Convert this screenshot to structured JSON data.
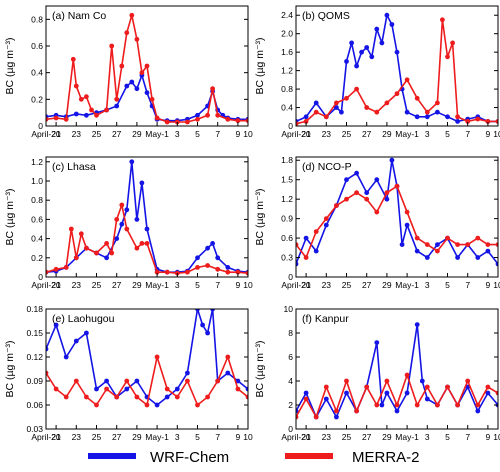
{
  "colors": {
    "wrf": "#1414e6",
    "merra": "#ee1c1c"
  },
  "legend": {
    "wrf": "WRF-Chem",
    "merra": "MERRA-2"
  },
  "chart_data": [
    {
      "type": "line",
      "title": "(a) Nam Co",
      "ylabel": "BC (µg m⁻³)",
      "ylim": [
        0,
        0.9
      ],
      "yticks": [
        "0",
        "0.2",
        "0.4",
        "0.6",
        "0.8"
      ],
      "ytick_values": [
        0,
        0.2,
        0.4,
        0.6,
        0.8
      ],
      "xlim": [
        0,
        20
      ],
      "xticks": [
        "April-20",
        "21",
        "23",
        "25",
        "27",
        "29",
        "May-1",
        "3",
        "5",
        "7",
        "9",
        "10"
      ],
      "xtick_values": [
        0,
        1,
        3,
        5,
        7,
        9,
        11,
        13,
        15,
        17,
        19,
        20
      ],
      "series": [
        {
          "name": "WRF-Chem",
          "x": [
            0,
            1,
            2,
            3,
            4,
            5,
            6,
            7,
            8,
            8.5,
            9,
            9.5,
            10,
            10.5,
            11,
            12,
            13,
            14,
            15,
            16,
            16.5,
            17,
            17.5,
            18,
            19,
            20
          ],
          "values": [
            0.07,
            0.08,
            0.07,
            0.09,
            0.08,
            0.1,
            0.12,
            0.15,
            0.3,
            0.33,
            0.28,
            0.38,
            0.25,
            0.15,
            0.05,
            0.04,
            0.04,
            0.05,
            0.08,
            0.15,
            0.26,
            0.12,
            0.08,
            0.06,
            0.05,
            0.05
          ]
        },
        {
          "name": "MERRA-2",
          "x": [
            0,
            1,
            2,
            2.7,
            3,
            3.5,
            4,
            4.5,
            5,
            6,
            6.5,
            7,
            7.5,
            8,
            8.5,
            9,
            9.5,
            10,
            10.5,
            11,
            12,
            13,
            14,
            15,
            16,
            16.5,
            17,
            18,
            19,
            20
          ],
          "values": [
            0.05,
            0.06,
            0.05,
            0.5,
            0.3,
            0.2,
            0.22,
            0.12,
            0.08,
            0.12,
            0.6,
            0.2,
            0.45,
            0.7,
            0.83,
            0.65,
            0.4,
            0.45,
            0.2,
            0.06,
            0.03,
            0.03,
            0.03,
            0.05,
            0.08,
            0.28,
            0.08,
            0.05,
            0.04,
            0.04
          ]
        }
      ]
    },
    {
      "type": "line",
      "title": "(b) QOMS",
      "ylabel": "BC (µg m⁻³)",
      "ylim": [
        0,
        2.6
      ],
      "yticks": [
        "0",
        "0.4",
        "0.8",
        "1.2",
        "1.6",
        "2.0",
        "2.4"
      ],
      "ytick_values": [
        0,
        0.4,
        0.8,
        1.2,
        1.6,
        2.0,
        2.4
      ],
      "xlim": [
        0,
        20
      ],
      "xticks": [
        "April-20",
        "21",
        "23",
        "25",
        "27",
        "29",
        "May-1",
        "3",
        "5",
        "7",
        "9",
        "10"
      ],
      "xtick_values": [
        0,
        1,
        3,
        5,
        7,
        9,
        11,
        13,
        15,
        17,
        19,
        20
      ],
      "series": [
        {
          "name": "WRF-Chem",
          "x": [
            0,
            1,
            2,
            3,
            4,
            4.5,
            5,
            5.5,
            6,
            6.5,
            7,
            7.5,
            8,
            8.5,
            9,
            9.5,
            10,
            10.5,
            11,
            12,
            13,
            14,
            15,
            16,
            17,
            18,
            19,
            20
          ],
          "values": [
            0.1,
            0.2,
            0.5,
            0.2,
            0.4,
            0.3,
            1.4,
            1.8,
            1.3,
            1.6,
            1.7,
            1.5,
            2.1,
            1.8,
            2.4,
            2.2,
            1.6,
            0.8,
            0.3,
            0.2,
            0.2,
            0.3,
            0.2,
            0.1,
            0.15,
            0.2,
            0.1,
            0.1
          ]
        },
        {
          "name": "MERRA-2",
          "x": [
            0,
            1,
            2,
            3,
            4,
            5,
            6,
            7,
            8,
            9,
            10,
            11,
            12,
            13,
            14,
            14.5,
            15,
            15.5,
            16,
            17,
            18,
            19,
            20
          ],
          "values": [
            0.05,
            0.1,
            0.3,
            0.2,
            0.5,
            0.6,
            0.8,
            0.4,
            0.3,
            0.5,
            0.7,
            1.0,
            0.6,
            0.3,
            0.5,
            2.3,
            1.5,
            1.8,
            0.2,
            0.1,
            0.15,
            0.1,
            0.1
          ]
        }
      ]
    },
    {
      "type": "line",
      "title": "(c) Lhasa",
      "ylabel": "BC (µg m⁻³)",
      "ylim": [
        0,
        1.25
      ],
      "yticks": [
        "0",
        "0.2",
        "0.4",
        "0.6",
        "0.8",
        "1.0",
        "1.2"
      ],
      "ytick_values": [
        0,
        0.2,
        0.4,
        0.6,
        0.8,
        1.0,
        1.2
      ],
      "xlim": [
        0,
        20
      ],
      "xticks": [
        "April-20",
        "21",
        "23",
        "25",
        "27",
        "29",
        "May-1",
        "3",
        "5",
        "7",
        "9",
        "10"
      ],
      "xtick_values": [
        0,
        1,
        3,
        5,
        7,
        9,
        11,
        13,
        15,
        17,
        19,
        20
      ],
      "series": [
        {
          "name": "WRF-Chem",
          "x": [
            0,
            1,
            2,
            3,
            4,
            5,
            6,
            7,
            7.5,
            8,
            8.5,
            9,
            9.5,
            10,
            11,
            12,
            13,
            14,
            15,
            16,
            16.5,
            17,
            18,
            19,
            20
          ],
          "values": [
            0.05,
            0.06,
            0.1,
            0.2,
            0.3,
            0.25,
            0.2,
            0.4,
            0.55,
            0.7,
            1.2,
            0.6,
            0.98,
            0.5,
            0.08,
            0.05,
            0.05,
            0.06,
            0.2,
            0.3,
            0.35,
            0.2,
            0.1,
            0.06,
            0.05
          ]
        },
        {
          "name": "MERRA-2",
          "x": [
            0,
            1,
            2,
            2.5,
            3,
            3.5,
            4,
            5,
            6,
            6.5,
            7,
            7.5,
            8,
            9,
            9.5,
            10,
            11,
            12,
            13,
            14,
            15,
            16,
            17,
            18,
            19,
            20
          ],
          "values": [
            0.05,
            0.08,
            0.1,
            0.5,
            0.2,
            0.45,
            0.3,
            0.25,
            0.35,
            0.25,
            0.6,
            0.75,
            0.5,
            0.3,
            0.35,
            0.35,
            0.05,
            0.05,
            0.04,
            0.05,
            0.1,
            0.12,
            0.08,
            0.05,
            0.05,
            0.04
          ]
        }
      ]
    },
    {
      "type": "line",
      "title": "(d) NCO-P",
      "ylabel": "BC (µg m⁻³)",
      "ylim": [
        0,
        1.85
      ],
      "yticks": [
        "0",
        "0.3",
        "0.6",
        "0.9",
        "1.2",
        "1.5",
        "1.8"
      ],
      "ytick_values": [
        0,
        0.3,
        0.6,
        0.9,
        1.2,
        1.5,
        1.8
      ],
      "xlim": [
        0,
        20
      ],
      "xticks": [
        "April-20",
        "21",
        "23",
        "25",
        "27",
        "29",
        "May-1",
        "3",
        "5",
        "7",
        "9",
        "10"
      ],
      "xtick_values": [
        0,
        1,
        3,
        5,
        7,
        9,
        11,
        13,
        15,
        17,
        19,
        20
      ],
      "series": [
        {
          "name": "WRF-Chem",
          "x": [
            0,
            1,
            2,
            3,
            4,
            5,
            6,
            7,
            8,
            9,
            9.5,
            10,
            10.5,
            11,
            12,
            13,
            14,
            15,
            16,
            17,
            18,
            19,
            20
          ],
          "values": [
            0.2,
            0.6,
            0.4,
            0.8,
            1.1,
            1.5,
            1.6,
            1.3,
            1.5,
            1.2,
            1.8,
            1.4,
            0.5,
            0.8,
            0.4,
            0.3,
            0.5,
            0.6,
            0.3,
            0.5,
            0.3,
            0.4,
            0.2
          ]
        },
        {
          "name": "MERRA-2",
          "x": [
            0,
            1,
            2,
            3,
            4,
            5,
            6,
            7,
            8,
            9,
            10,
            11,
            12,
            13,
            14,
            15,
            16,
            17,
            18,
            19,
            20
          ],
          "values": [
            0.5,
            0.3,
            0.7,
            0.9,
            1.1,
            1.2,
            1.3,
            1.2,
            1.0,
            1.3,
            1.4,
            1.0,
            0.6,
            0.5,
            0.4,
            0.6,
            0.5,
            0.5,
            0.6,
            0.5,
            0.5
          ]
        }
      ]
    },
    {
      "type": "line",
      "title": "(e) Laohugou",
      "ylabel": "BC (µg m⁻³)",
      "ylim": [
        0.03,
        0.18
      ],
      "yticks": [
        "0.03",
        "0.06",
        "0.09",
        "0.12",
        "0.15",
        "0.18"
      ],
      "ytick_values": [
        0.03,
        0.06,
        0.09,
        0.12,
        0.15,
        0.18
      ],
      "xlim": [
        0,
        20
      ],
      "xticks": [
        "April-20",
        "21",
        "23",
        "25",
        "27",
        "29",
        "May-1",
        "3",
        "5",
        "7",
        "9",
        "10"
      ],
      "xtick_values": [
        0,
        1,
        3,
        5,
        7,
        9,
        11,
        13,
        15,
        17,
        19,
        20
      ],
      "series": [
        {
          "name": "WRF-Chem",
          "x": [
            0,
            1,
            2,
            3,
            4,
            5,
            6,
            7,
            8,
            9,
            10,
            11,
            12,
            13,
            14,
            15,
            15.5,
            16,
            16.5,
            17,
            18,
            19,
            20
          ],
          "values": [
            0.13,
            0.16,
            0.12,
            0.14,
            0.15,
            0.08,
            0.09,
            0.07,
            0.08,
            0.09,
            0.07,
            0.06,
            0.07,
            0.08,
            0.1,
            0.18,
            0.16,
            0.15,
            0.18,
            0.09,
            0.1,
            0.09,
            0.08
          ]
        },
        {
          "name": "MERRA-2",
          "x": [
            0,
            1,
            2,
            3,
            4,
            5,
            6,
            7,
            8,
            9,
            10,
            11,
            12,
            13,
            14,
            15,
            16,
            17,
            18,
            19,
            20
          ],
          "values": [
            0.1,
            0.08,
            0.07,
            0.09,
            0.07,
            0.06,
            0.08,
            0.07,
            0.09,
            0.07,
            0.06,
            0.12,
            0.08,
            0.07,
            0.09,
            0.06,
            0.07,
            0.09,
            0.12,
            0.08,
            0.07
          ]
        }
      ]
    },
    {
      "type": "line",
      "title": "(f) Kanpur",
      "ylabel": "BC (µg m⁻³)",
      "ylim": [
        0,
        10
      ],
      "yticks": [
        "0",
        "2",
        "4",
        "6",
        "8",
        "10"
      ],
      "ytick_values": [
        0,
        2,
        4,
        6,
        8,
        10
      ],
      "xlim": [
        0,
        20
      ],
      "xticks": [
        "April-20",
        "21",
        "23",
        "25",
        "27",
        "29",
        "May-1",
        "3",
        "5",
        "7",
        "9",
        "10"
      ],
      "xtick_values": [
        0,
        1,
        3,
        5,
        7,
        9,
        11,
        13,
        15,
        17,
        19,
        20
      ],
      "series": [
        {
          "name": "WRF-Chem",
          "x": [
            0,
            1,
            2,
            3,
            4,
            5,
            6,
            7,
            8,
            8.5,
            9,
            10,
            11,
            12,
            12.5,
            13,
            14,
            15,
            16,
            17,
            18,
            19,
            20
          ],
          "values": [
            1.5,
            3.0,
            1.0,
            2.5,
            1.0,
            3.0,
            1.5,
            3.5,
            7.2,
            2.0,
            3.0,
            1.5,
            3.0,
            8.7,
            4.0,
            2.5,
            2.0,
            3.5,
            2.0,
            3.5,
            1.5,
            3.0,
            2.0
          ]
        },
        {
          "name": "MERRA-2",
          "x": [
            0,
            1,
            2,
            3,
            4,
            5,
            6,
            7,
            8,
            9,
            10,
            11,
            12,
            13,
            14,
            15,
            16,
            17,
            18,
            19,
            20
          ],
          "values": [
            1.0,
            2.5,
            1.0,
            3.5,
            1.5,
            4.0,
            1.5,
            3.5,
            2.0,
            4.0,
            2.0,
            4.5,
            2.0,
            3.5,
            2.0,
            3.5,
            2.0,
            4.0,
            2.0,
            3.5,
            3.0
          ]
        }
      ]
    }
  ]
}
